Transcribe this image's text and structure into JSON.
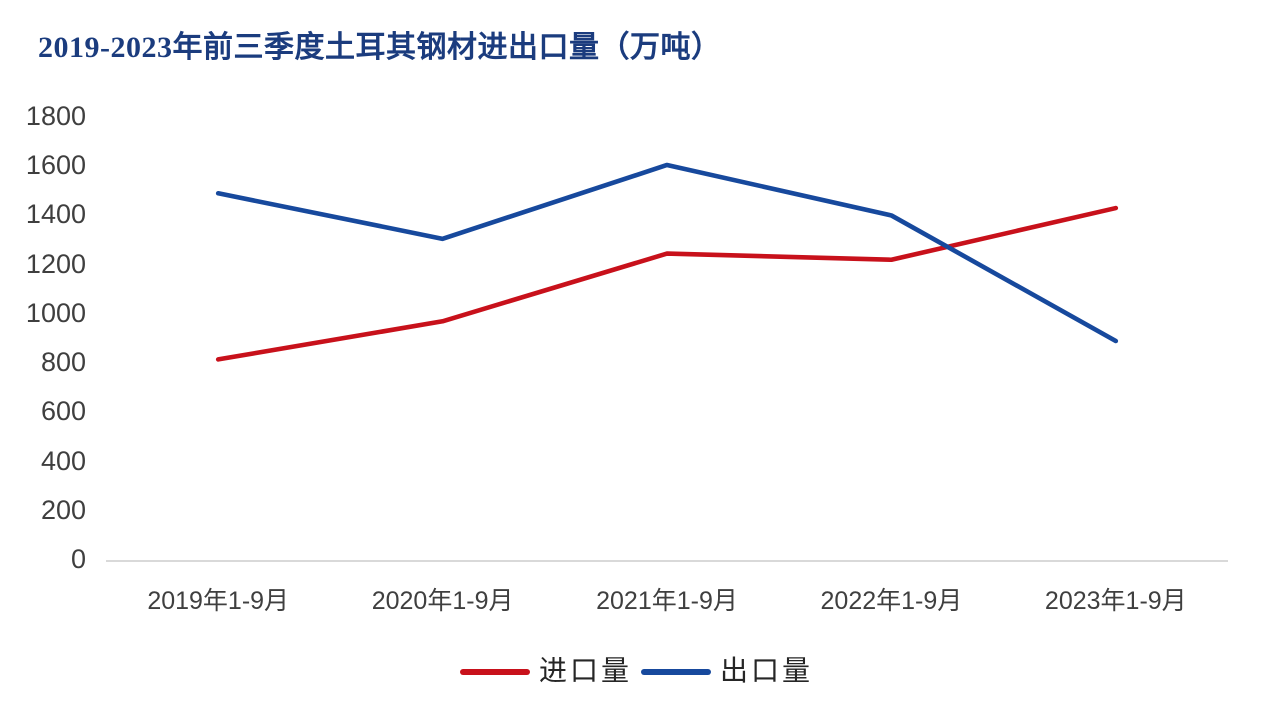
{
  "page": {
    "background": "#ffffff"
  },
  "chart_data": {
    "type": "line",
    "title": "2019-2023年前三季度土耳其钢材进出口量（万吨）",
    "title_color": "#1b3c7e",
    "categories": [
      "2019年1-9月",
      "2020年1-9月",
      "2021年1-9月",
      "2022年1-9月",
      "2023年1-9月"
    ],
    "series": [
      {
        "name": "进口量",
        "color": "#c8111b",
        "values": [
          815,
          970,
          1245,
          1220,
          1430
        ]
      },
      {
        "name": "出口量",
        "color": "#17499d",
        "values": [
          1490,
          1305,
          1605,
          1400,
          890
        ]
      }
    ],
    "xlabel": "",
    "ylabel": "",
    "ylim": [
      0,
      1800
    ],
    "ytick_step": 200,
    "yticks": [
      0,
      200,
      400,
      600,
      800,
      1000,
      1200,
      1400,
      1600,
      1800
    ],
    "grid": false,
    "legend_position": "bottom",
    "axis_line_color": "#d9d9d9",
    "tick_label_color": "#3f3f3f",
    "line_width": 4.6
  }
}
